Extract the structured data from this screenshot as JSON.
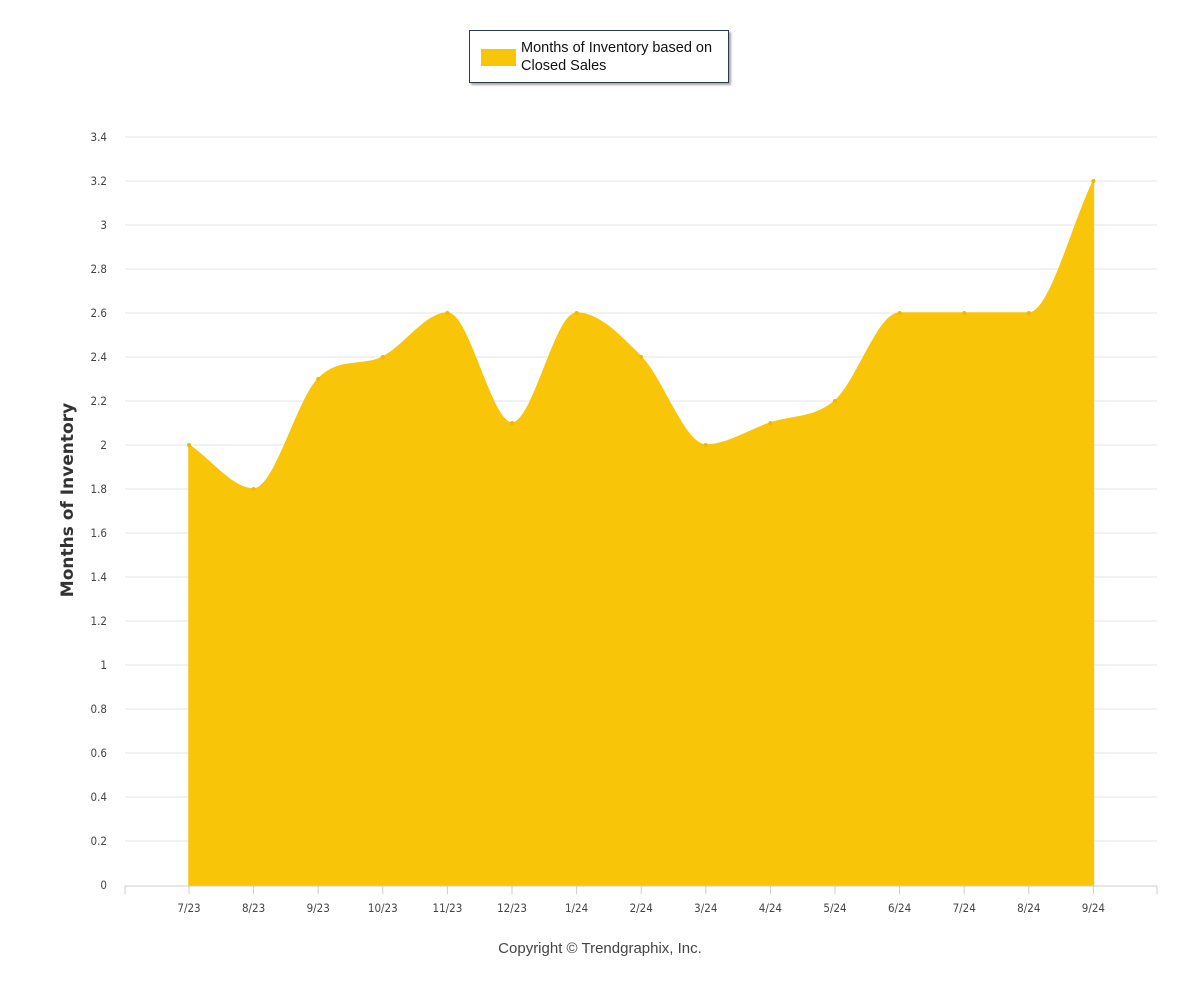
{
  "chart_data": {
    "type": "area",
    "categories": [
      "7/23",
      "8/23",
      "9/23",
      "10/23",
      "11/23",
      "12/23",
      "1/24",
      "2/24",
      "3/24",
      "4/24",
      "5/24",
      "6/24",
      "7/24",
      "8/24",
      "9/24"
    ],
    "series": [
      {
        "name": "Months of Inventory based on Closed Sales",
        "values": [
          2.0,
          1.8,
          2.3,
          2.4,
          2.6,
          2.1,
          2.6,
          2.4,
          2.0,
          2.1,
          2.2,
          2.6,
          2.6,
          2.6,
          3.2
        ],
        "color": "#F8C508"
      }
    ],
    "ylabel": "Months of Inventory",
    "xlabel": "",
    "ylim": [
      0,
      3.4
    ],
    "yticks": [
      "0",
      "0.2",
      "0.4",
      "0.6",
      "0.8",
      "1",
      "1.2",
      "1.4",
      "1.6",
      "1.8",
      "2",
      "2.2",
      "2.4",
      "2.6",
      "2.8",
      "3",
      "3.2",
      "3.4"
    ],
    "grid": true,
    "legend_position": "top-center"
  },
  "legend": {
    "label": "Months of Inventory based on Closed Sales"
  },
  "footer": {
    "copyright": "Copyright © Trendgraphix, Inc."
  },
  "colors": {
    "area": "#F8C508",
    "grid": "#e6e6e6",
    "axis": "#cccccc"
  }
}
